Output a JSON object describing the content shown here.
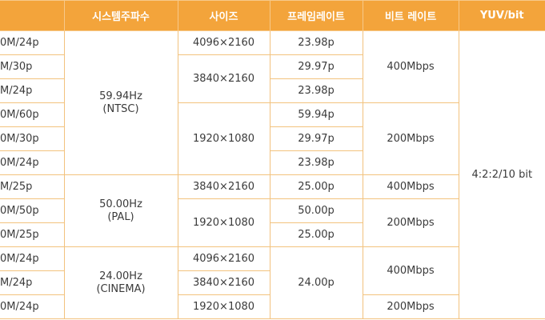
{
  "table": {
    "header": [
      "시스템주파수",
      "사이즈",
      "프레임레이트",
      "비트 레이트",
      "YUV/bit"
    ],
    "rows": [
      [
        "0M/24p",
        [
          "59.94Hz",
          "(NTSC)"
        ],
        "4096×2160",
        "23.98p",
        "400Mbps",
        "4:2:2/10 bit"
      ],
      [
        "M/30p",
        "3840×2160",
        "29.97p"
      ],
      [
        "M/24p",
        "23.98p"
      ],
      [
        "0M/60p",
        "1920×1080",
        "59.94p",
        "200Mbps"
      ],
      [
        "0M/30p",
        "29.97p"
      ],
      [
        "0M/24p",
        "23.98p"
      ],
      [
        "M/25p",
        [
          "50.00Hz",
          "(PAL)"
        ],
        "3840×2160",
        "25.00p",
        "400Mbps"
      ],
      [
        "0M/50p",
        "1920×1080",
        "50.00p",
        "200Mbps"
      ],
      [
        "0M/25p",
        "25.00p"
      ],
      [
        "0M/24p",
        [
          "24.00Hz",
          "(CINEMA)"
        ],
        "4096×2160",
        "24.00p",
        "400Mbps"
      ],
      [
        "M/24p",
        "3840×2160"
      ],
      [
        "0M/24p",
        "1920×1080",
        "200Mbps"
      ]
    ]
  }
}
